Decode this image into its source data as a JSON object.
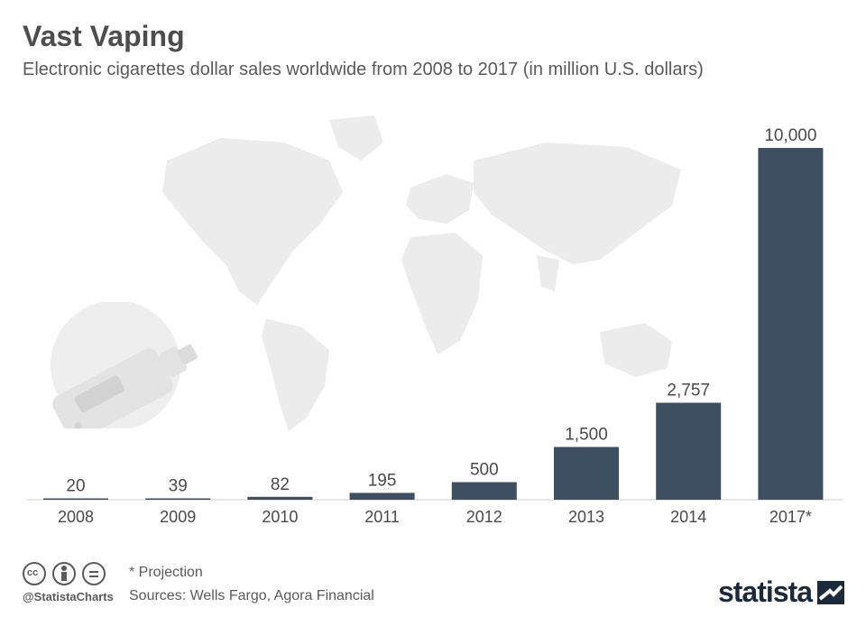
{
  "header": {
    "title": "Vast Vaping",
    "subtitle": "Electronic cigarettes dollar sales worldwide from 2008 to 2017 (in million U.S. dollars)"
  },
  "chart_data": {
    "type": "bar",
    "categories": [
      "2008",
      "2009",
      "2010",
      "2011",
      "2012",
      "2013",
      "2014",
      "2017*"
    ],
    "values": [
      20,
      39,
      82,
      195,
      500,
      1500,
      2757,
      10000
    ],
    "value_labels": [
      "20",
      "39",
      "82",
      "195",
      "500",
      "1,500",
      "2,757",
      "10,000"
    ],
    "title": "Vast Vaping",
    "xlabel": "",
    "ylabel": "",
    "ylim": [
      0,
      10000
    ],
    "grid": false,
    "bar_color": "#3d4f61"
  },
  "footer": {
    "note": "* Projection",
    "sources": "Sources: Wells Fargo, Agora Financial",
    "handle": "@StatistaCharts",
    "brand": "statista"
  },
  "colors": {
    "bar": "#3d4f61",
    "map": "#ececec",
    "brand": "#1b2a3a"
  },
  "icons": [
    "cc-icon",
    "attribution-icon",
    "no-derivatives-icon",
    "vape-device-icon",
    "statista-logo-icon"
  ]
}
